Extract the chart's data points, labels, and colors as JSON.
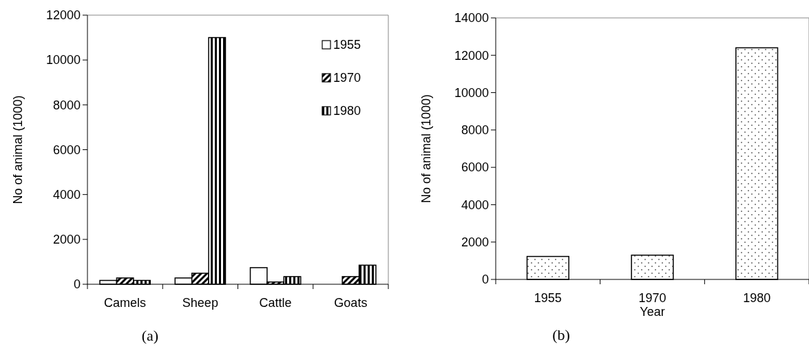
{
  "chart_data": [
    {
      "type": "bar",
      "categories": [
        "Camels",
        "Sheep",
        "Cattle",
        "Goats"
      ],
      "ylabel": "No of animal (1000)",
      "ylim": [
        0,
        12000
      ],
      "yticks": [
        0,
        2000,
        4000,
        6000,
        8000,
        10000,
        12000
      ],
      "legend": "top right",
      "grid": false,
      "annotations": [
        "(a)"
      ],
      "series": [
        {
          "name": "1955",
          "color": "#ffffff",
          "values": [
            170,
            280,
            740,
            0
          ]
        },
        {
          "name": "1970",
          "color": "#000000",
          "values": [
            280,
            490,
            100,
            340
          ]
        },
        {
          "name": "1980",
          "color": "#000000",
          "values": [
            170,
            11000,
            340,
            850
          ]
        }
      ]
    },
    {
      "type": "bar",
      "categories": [
        "1955",
        "1970",
        "1980"
      ],
      "xlabel": "Year",
      "ylabel": "No of animal (1000)",
      "ylim": [
        0,
        14000
      ],
      "yticks": [
        0,
        2000,
        4000,
        6000,
        8000,
        10000,
        12000,
        14000
      ],
      "legend": false,
      "grid": false,
      "annotations": [
        "(b)"
      ],
      "series": [
        {
          "color": "#000000",
          "values": [
            1230,
            1300,
            12400
          ]
        }
      ]
    }
  ]
}
